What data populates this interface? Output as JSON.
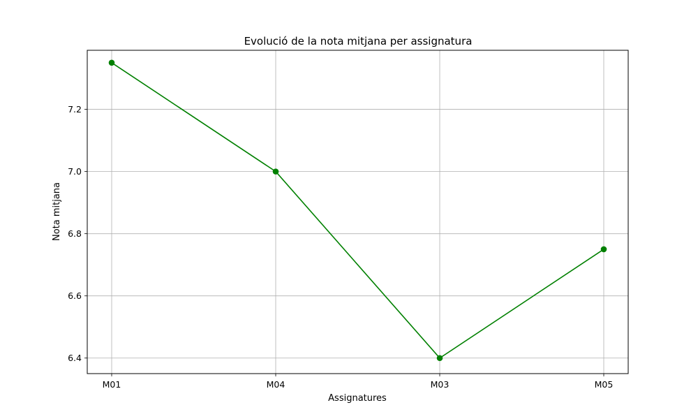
{
  "chart_data": {
    "type": "line",
    "title": "Evolució de la nota mitjana per assignatura",
    "xlabel": "Assignatures",
    "ylabel": "Nota mitjana",
    "categories": [
      "M01",
      "M04",
      "M03",
      "M05"
    ],
    "series": [
      {
        "values": [
          7.35,
          7.0,
          6.4,
          6.75
        ]
      }
    ],
    "ylim": [
      6.35,
      7.39
    ],
    "yticks": [
      "6.4",
      "6.6",
      "6.8",
      "7.0",
      "7.2"
    ],
    "grid": true,
    "marker": "circle",
    "line_color": "#008000",
    "grid_color": "#b0b0b0"
  }
}
